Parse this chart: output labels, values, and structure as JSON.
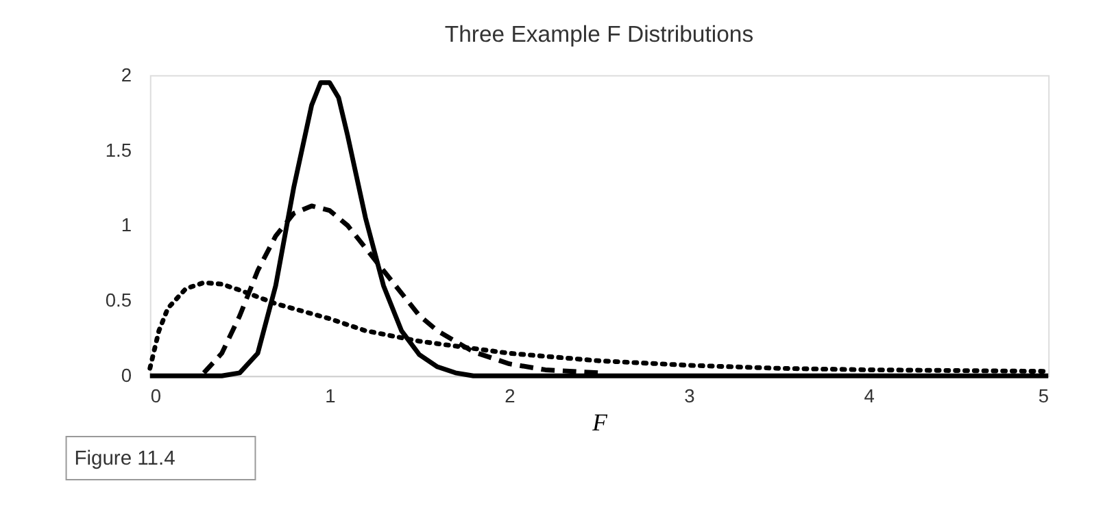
{
  "chart_data": {
    "type": "line",
    "title": "Three Example F Distributions",
    "xlabel": "F",
    "annotations": [
      "Figure 11.4"
    ],
    "xlim": [
      0,
      5
    ],
    "xticks": [
      0,
      1,
      2,
      3,
      4,
      5
    ],
    "ylim": [
      0,
      2
    ],
    "yticks": [
      0,
      0.5,
      1,
      1.5,
      2
    ],
    "grid": false,
    "marker": "none",
    "series": [
      {
        "color": "#000000",
        "line_style": "dashed",
        "x": [
          0.3,
          0.4,
          0.5,
          0.6,
          0.7,
          0.8,
          0.9,
          1.0,
          1.1,
          1.2,
          1.3,
          1.4,
          1.5,
          1.6,
          1.8,
          2.0,
          2.2,
          2.5
        ],
        "values": [
          0.02,
          0.15,
          0.4,
          0.7,
          0.93,
          1.08,
          1.13,
          1.1,
          1.0,
          0.85,
          0.7,
          0.55,
          0.4,
          0.3,
          0.16,
          0.08,
          0.04,
          0.02
        ]
      },
      {
        "color": "#000000",
        "line_style": "dotted",
        "x": [
          0,
          0.05,
          0.1,
          0.2,
          0.3,
          0.4,
          0.5,
          0.7,
          1.0,
          1.2,
          1.5,
          2,
          2.5,
          3,
          3.5,
          4,
          5
        ],
        "values": [
          0.05,
          0.3,
          0.45,
          0.58,
          0.62,
          0.61,
          0.57,
          0.48,
          0.38,
          0.3,
          0.23,
          0.15,
          0.1,
          0.07,
          0.05,
          0.04,
          0.03
        ]
      },
      {
        "color": "#000000",
        "line_style": "solid",
        "x": [
          0,
          0.4,
          0.5,
          0.6,
          0.7,
          0.8,
          0.9,
          0.95,
          1.0,
          1.05,
          1.1,
          1.2,
          1.3,
          1.4,
          1.5,
          1.6,
          1.7,
          1.8,
          5
        ],
        "values": [
          0,
          0,
          0.02,
          0.15,
          0.6,
          1.25,
          1.8,
          1.95,
          1.95,
          1.85,
          1.6,
          1.05,
          0.6,
          0.3,
          0.14,
          0.06,
          0.02,
          0,
          0
        ]
      }
    ]
  }
}
